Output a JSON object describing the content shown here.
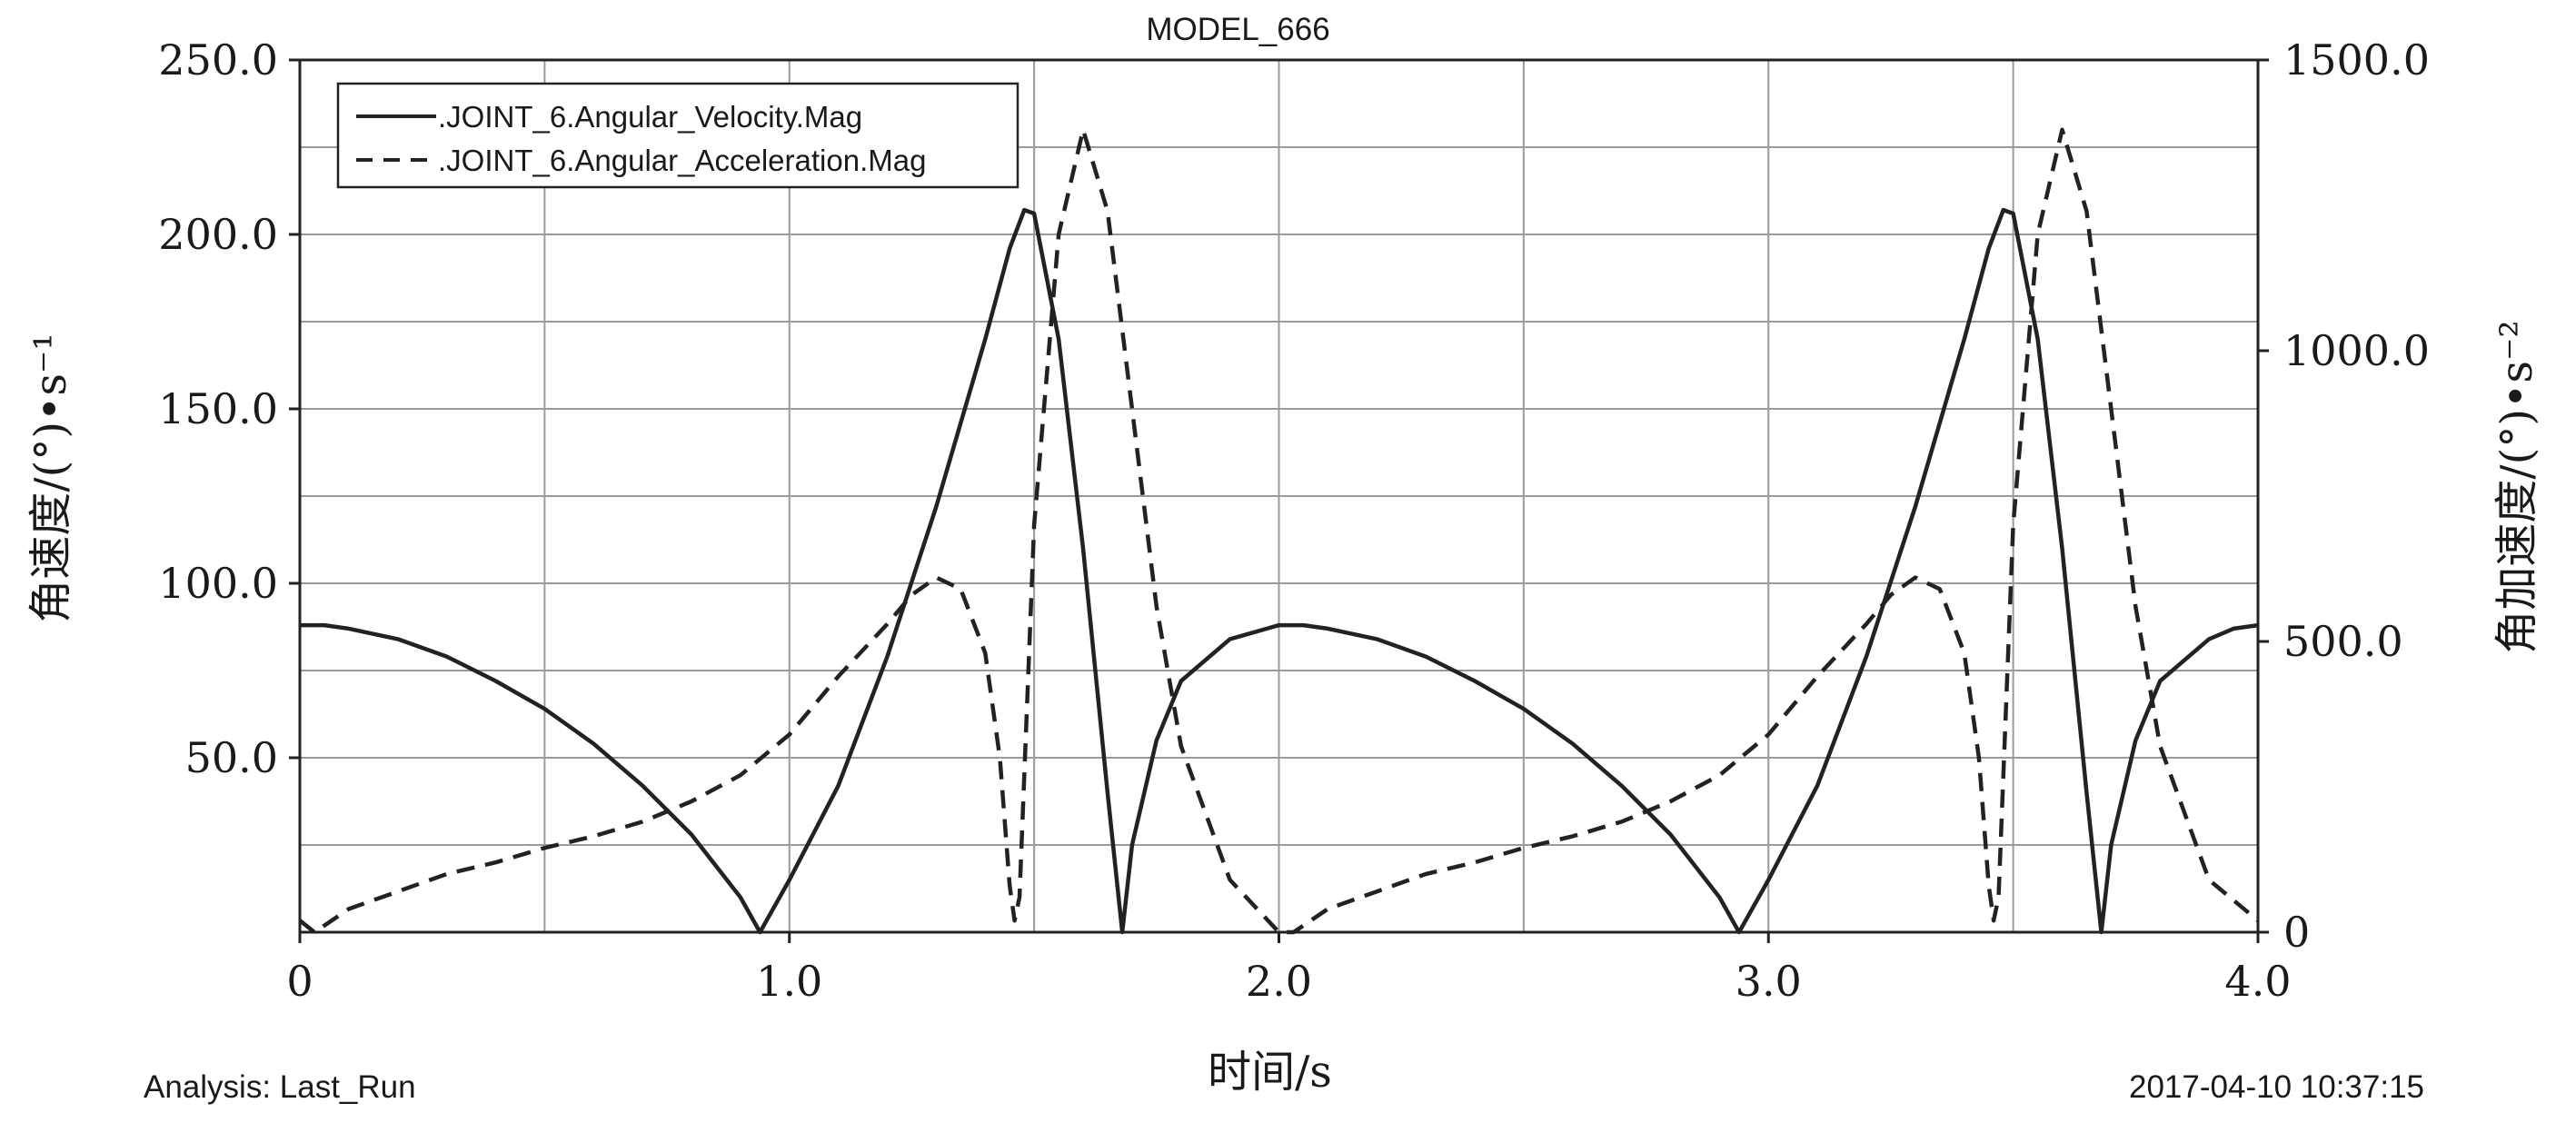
{
  "chart_data": {
    "type": "line",
    "title": "MODEL_666",
    "xlabel": "时间/s",
    "ylabel_left": "角速度/(°)•s⁻¹",
    "ylabel_right": "角加速度/(°)•s⁻²",
    "xlim": [
      0,
      4.0
    ],
    "ylim_left": [
      0,
      250
    ],
    "ylim_right": [
      0,
      1500
    ],
    "x_ticks": [
      "0",
      "1.0",
      "2.0",
      "3.0",
      "4.0"
    ],
    "y_left_ticks": [
      "50.0",
      "100.0",
      "150.0",
      "200.0",
      "250.0"
    ],
    "y_right_ticks": [
      "0",
      "500.0",
      "1000.0",
      "1500.0"
    ],
    "grid": true,
    "legend_position": "top-left",
    "series": [
      {
        "name": ".JOINT_6.Angular_Velocity.Mag",
        "axis": "left",
        "style": "solid",
        "x": [
          0.0,
          0.05,
          0.1,
          0.2,
          0.3,
          0.4,
          0.5,
          0.6,
          0.7,
          0.8,
          0.9,
          0.94,
          1.0,
          1.1,
          1.2,
          1.3,
          1.4,
          1.45,
          1.48,
          1.5,
          1.55,
          1.6,
          1.65,
          1.68,
          1.7,
          1.75,
          1.8,
          1.9,
          2.0,
          2.05,
          2.1,
          2.2,
          2.3,
          2.4,
          2.5,
          2.6,
          2.7,
          2.8,
          2.9,
          2.94,
          3.0,
          3.1,
          3.2,
          3.3,
          3.4,
          3.45,
          3.48,
          3.5,
          3.55,
          3.6,
          3.65,
          3.68,
          3.7,
          3.75,
          3.8,
          3.9,
          3.95,
          4.0
        ],
        "values": [
          88,
          88,
          87,
          84,
          79,
          72,
          64,
          54,
          42,
          28,
          10,
          0,
          15,
          42,
          79,
          122,
          170,
          196,
          207,
          206,
          170,
          110,
          40,
          0,
          25,
          55,
          72,
          84,
          88,
          88,
          87,
          84,
          79,
          72,
          64,
          54,
          42,
          28,
          10,
          0,
          15,
          42,
          79,
          122,
          170,
          196,
          207,
          206,
          170,
          110,
          40,
          0,
          25,
          55,
          72,
          84,
          87,
          88
        ]
      },
      {
        "name": ".JOINT_6.Angular_Acceleration.Mag",
        "axis": "right",
        "style": "dashed",
        "x": [
          0.0,
          0.03,
          0.1,
          0.2,
          0.3,
          0.4,
          0.5,
          0.6,
          0.7,
          0.8,
          0.9,
          1.0,
          1.1,
          1.2,
          1.25,
          1.3,
          1.35,
          1.4,
          1.43,
          1.45,
          1.46,
          1.47,
          1.5,
          1.55,
          1.6,
          1.65,
          1.7,
          1.75,
          1.8,
          1.9,
          2.0,
          2.03,
          2.1,
          2.2,
          2.3,
          2.4,
          2.5,
          2.6,
          2.7,
          2.8,
          2.9,
          3.0,
          3.1,
          3.2,
          3.25,
          3.3,
          3.35,
          3.4,
          3.43,
          3.45,
          3.46,
          3.47,
          3.5,
          3.55,
          3.6,
          3.65,
          3.7,
          3.75,
          3.8,
          3.9,
          4.0
        ],
        "values": [
          20,
          0,
          40,
          70,
          100,
          120,
          145,
          165,
          190,
          225,
          270,
          340,
          440,
          530,
          580,
          610,
          590,
          480,
          300,
          80,
          20,
          60,
          700,
          1200,
          1380,
          1240,
          900,
          560,
          320,
          90,
          0,
          0,
          40,
          70,
          100,
          120,
          145,
          165,
          190,
          225,
          270,
          340,
          440,
          530,
          580,
          610,
          590,
          480,
          300,
          80,
          20,
          60,
          700,
          1200,
          1380,
          1240,
          900,
          560,
          320,
          90,
          20
        ]
      }
    ]
  },
  "footer": {
    "analysis": "Analysis:  Last_Run",
    "timestamp": "2017-04-10 10:37:15"
  }
}
